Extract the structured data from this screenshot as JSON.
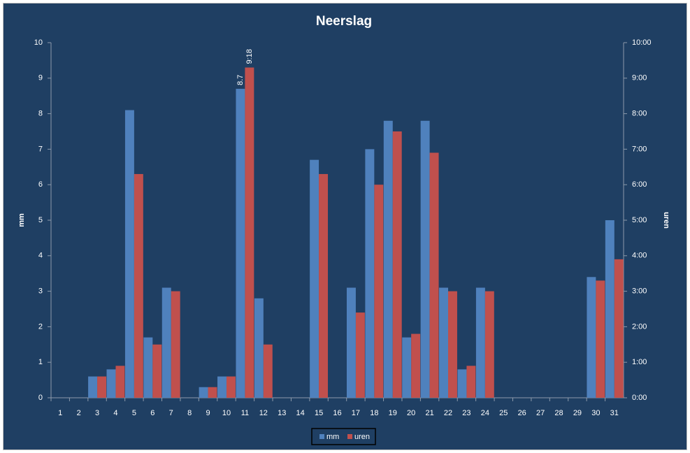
{
  "chart_data": {
    "type": "bar",
    "title": "Neerslag",
    "y_label": "mm",
    "y2_label": "uren",
    "categories": [
      1,
      2,
      3,
      4,
      5,
      6,
      7,
      8,
      9,
      10,
      11,
      12,
      13,
      14,
      15,
      16,
      17,
      18,
      19,
      20,
      21,
      22,
      23,
      24,
      25,
      26,
      27,
      28,
      29,
      30,
      31
    ],
    "series": [
      {
        "name": "mm",
        "color": "#4f81bd",
        "axis": "y",
        "values": [
          0,
          0,
          0.6,
          0.8,
          8.1,
          1.7,
          3.1,
          0,
          0.3,
          0.6,
          8.7,
          2.8,
          0,
          0,
          6.7,
          0,
          3.1,
          7.0,
          7.8,
          1.7,
          7.8,
          3.1,
          0.8,
          3.1,
          0,
          0,
          0,
          0,
          0,
          3.4,
          5.0
        ],
        "value_labels": [
          null,
          null,
          null,
          null,
          null,
          null,
          null,
          null,
          null,
          null,
          "8.7",
          null,
          null,
          null,
          null,
          null,
          null,
          null,
          null,
          null,
          null,
          null,
          null,
          null,
          null,
          null,
          null,
          null,
          null,
          null,
          null
        ]
      },
      {
        "name": "uren",
        "color": "#c0504d",
        "axis": "y2",
        "values": [
          0,
          0,
          0.6,
          0.9,
          6.3,
          1.5,
          3.0,
          0,
          0.3,
          0.6,
          9.3,
          1.5,
          0,
          0,
          6.3,
          0,
          2.4,
          6.0,
          7.5,
          1.8,
          6.9,
          3.0,
          0.9,
          3.0,
          0,
          0,
          0,
          0,
          0,
          3.3,
          3.9
        ],
        "value_labels": [
          null,
          null,
          null,
          null,
          null,
          null,
          null,
          null,
          null,
          null,
          "9:18",
          null,
          null,
          null,
          null,
          null,
          null,
          null,
          null,
          null,
          null,
          null,
          null,
          null,
          null,
          null,
          null,
          null,
          null,
          null,
          null
        ]
      }
    ],
    "ylim": [
      0,
      10
    ],
    "yticks": [
      0,
      1,
      2,
      3,
      4,
      5,
      6,
      7,
      8,
      9,
      10
    ],
    "y2lim": [
      0,
      10
    ],
    "y2ticks": [
      {
        "value": 0,
        "label": "0:00"
      },
      {
        "value": 1,
        "label": "1:00"
      },
      {
        "value": 2,
        "label": "2:00"
      },
      {
        "value": 3,
        "label": "3:00"
      },
      {
        "value": 4,
        "label": "4:00"
      },
      {
        "value": 5,
        "label": "5:00"
      },
      {
        "value": 6,
        "label": "6:00"
      },
      {
        "value": 7,
        "label": "7:00"
      },
      {
        "value": 8,
        "label": "8:00"
      },
      {
        "value": 9,
        "label": "9:00"
      },
      {
        "value": 10,
        "label": "10:00"
      }
    ],
    "legend": "bottom"
  }
}
